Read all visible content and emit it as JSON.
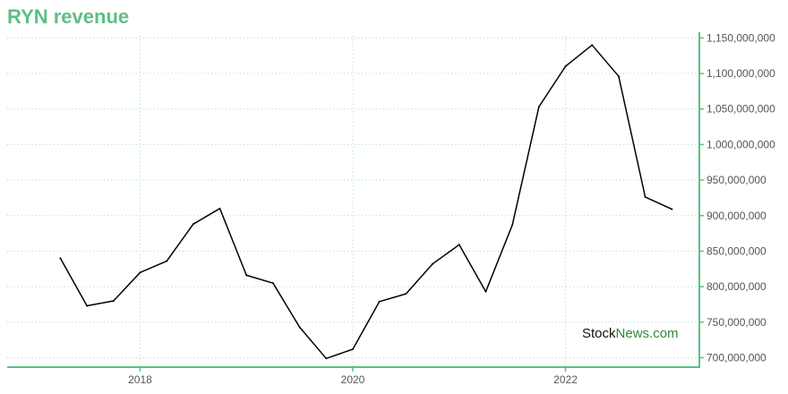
{
  "title": "RYN revenue",
  "colors": {
    "accent": "#5cbf85",
    "grid": "#a8dcc8",
    "line": "#000000",
    "tick_text": "#555555",
    "watermark_dark": "#111111",
    "watermark_green": "#2e8b3a"
  },
  "watermark": {
    "part1": "Stock",
    "part2": "News",
    "part3": ".com"
  },
  "chart_data": {
    "type": "line",
    "title": "RYN revenue",
    "xlabel": "",
    "ylabel": "",
    "grid": true,
    "y_axis_position": "right",
    "x_ticks": [
      2018,
      2020,
      2022
    ],
    "x_tick_labels": [
      "2018",
      "2020",
      "2022"
    ],
    "y_ticks": [
      700000000,
      750000000,
      800000000,
      850000000,
      900000000,
      950000000,
      1000000000,
      1050000000,
      1100000000,
      1150000000
    ],
    "y_tick_labels": [
      "700,000,000",
      "750,000,000",
      "800,000,000",
      "850,000,000",
      "900,000,000",
      "950,000,000",
      "1,000,000,000",
      "1,050,000,000",
      "1,100,000,000",
      "1,150,000,000"
    ],
    "xlim": [
      2016.75,
      2023.25
    ],
    "ylim": [
      688000000,
      1153000000
    ],
    "x": [
      2017.25,
      2017.5,
      2017.75,
      2018.0,
      2018.25,
      2018.5,
      2018.75,
      2019.0,
      2019.25,
      2019.5,
      2019.75,
      2020.0,
      2020.25,
      2020.5,
      2020.75,
      2021.0,
      2021.25,
      2021.5,
      2021.75,
      2022.0,
      2022.25,
      2022.5,
      2022.75,
      2023.0
    ],
    "series": [
      {
        "values": [
          840000000,
          773000000,
          780000000,
          820000000,
          836000000,
          888000000,
          910000000,
          816000000,
          805000000,
          743000000,
          699000000,
          712000000,
          779000000,
          790000000,
          832000000,
          859000000,
          793000000,
          887000000,
          1053000000,
          1110000000,
          1140000000,
          1096000000,
          926000000,
          909000000
        ]
      }
    ]
  }
}
